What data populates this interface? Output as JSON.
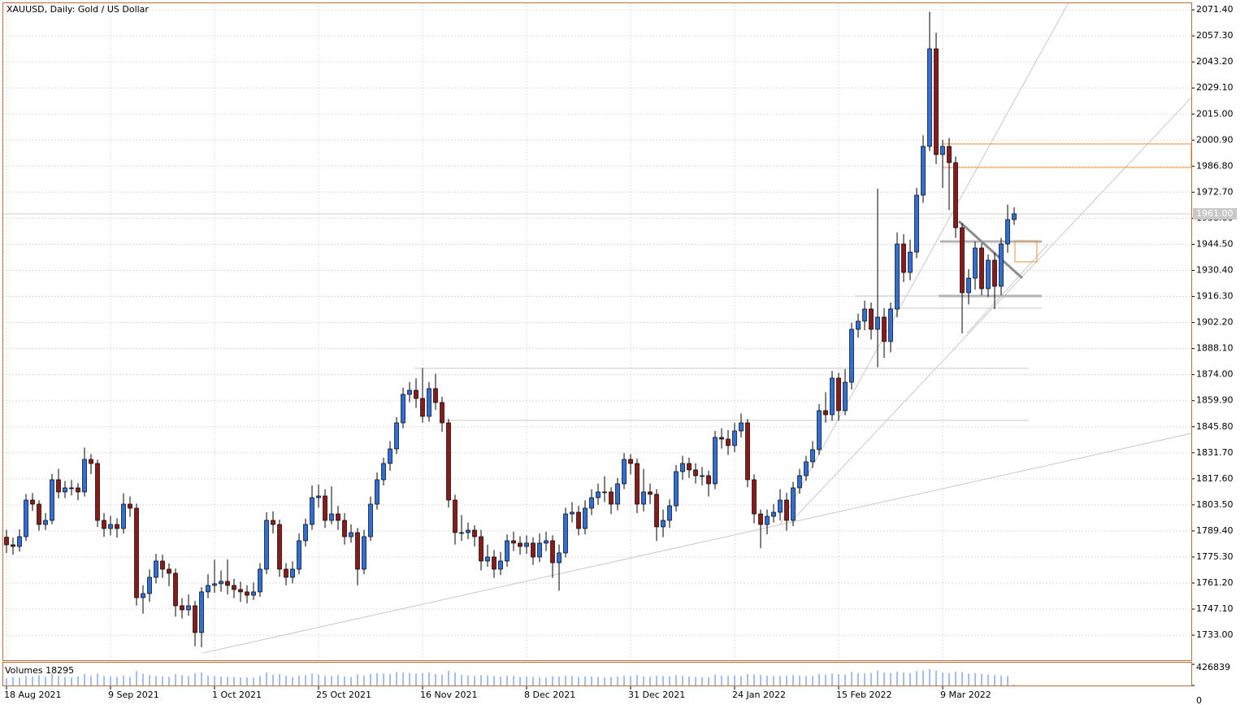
{
  "chart_data": {
    "type": "candlestick",
    "title": "XAUUSD, Daily:  Gold / US Dollar",
    "categories": [
      "18 Aug 2021",
      null,
      null,
      null,
      null,
      null,
      null,
      null,
      null,
      null,
      null,
      null,
      null,
      null,
      null,
      null,
      "9 Sep 2021",
      null,
      null,
      null,
      null,
      null,
      null,
      null,
      null,
      null,
      null,
      null,
      null,
      null,
      null,
      null,
      "1 Oct 2021",
      null,
      null,
      null,
      null,
      null,
      null,
      null,
      null,
      null,
      null,
      null,
      null,
      null,
      null,
      null,
      "25 Oct 2021",
      null,
      null,
      null,
      null,
      null,
      null,
      null,
      null,
      null,
      null,
      null,
      null,
      null,
      null,
      null,
      "16 Nov 2021",
      null,
      null,
      null,
      null,
      null,
      null,
      null,
      null,
      null,
      null,
      null,
      null,
      null,
      null,
      null,
      "8 Dec 2021",
      null,
      null,
      null,
      null,
      null,
      null,
      null,
      null,
      null,
      null,
      null,
      null,
      null,
      null,
      null,
      "31 Dec 2021",
      null,
      null,
      null,
      null,
      null,
      null,
      null,
      null,
      null,
      null,
      null,
      null,
      null,
      null,
      null,
      "24 Jan 2022",
      null,
      null,
      null,
      null,
      null,
      null,
      null,
      null,
      null,
      null,
      null,
      null,
      null,
      null,
      null,
      "15 Feb 2022",
      null,
      null,
      null,
      null,
      null,
      null,
      null,
      null,
      null,
      null,
      null,
      null,
      null,
      null,
      null,
      "9 Mar 2022",
      null,
      null,
      null,
      null,
      null,
      null,
      null,
      null,
      null,
      null,
      null
    ],
    "open": [
      1786.0,
      1781.9,
      1781.0,
      1786.3,
      1806.1,
      1803.9,
      1792.9,
      1795.1,
      1817.1,
      1810.5,
      1812.7,
      1812.7,
      1810.5,
      1828.1,
      1825.9,
      1795.1,
      1790.7,
      1792.9,
      1790.7,
      1803.9,
      1801.7,
      1753.3,
      1755.5,
      1764.3,
      1773.1,
      1768.7,
      1766.5,
      1748.9,
      1746.7,
      1748.9,
      1734.4,
      1756.4,
      1759.9,
      1760.8,
      1762.1,
      1759.9,
      1757.7,
      1756.4,
      1754.6,
      1756.4,
      1768.7,
      1795.1,
      1792.9,
      1768.7,
      1764.3,
      1768.7,
      1784.1,
      1792.9,
      1807.4,
      1808.3,
      1795.1,
      1798.6,
      1795.1,
      1786.3,
      1788.5,
      1768.7,
      1786.3,
      1803.9,
      1817.1,
      1825.9,
      1833.8,
      1847.9,
      1863.3,
      1865.5,
      1861.1,
      1851.4,
      1866.4,
      1858.9,
      1847.9,
      1806.1,
      1788.5,
      1788.5,
      1789.8,
      1786.3,
      1773.1,
      1775.3,
      1768.7,
      1773.1,
      1784.1,
      1782.8,
      1781.0,
      1782.8,
      1775.3,
      1782.8,
      1784.1,
      1772.2,
      1777.5,
      1798.6,
      1799.5,
      1790.7,
      1801.7,
      1807.4,
      1810.5,
      1810.5,
      1803.9,
      1814.9,
      1828.1,
      1825.9,
      1803.9,
      1810.5,
      1809.2,
      1791.6,
      1795.1,
      1803.0,
      1821.5,
      1825.9,
      1822.4,
      1819.3,
      1819.3,
      1814.9,
      1840.0,
      1839.1,
      1835.6,
      1843.5,
      1847.9,
      1817.1,
      1798.6,
      1792.9,
      1797.3,
      1799.5,
      1806.1,
      1795.1,
      1812.7,
      1819.3,
      1826.8,
      1833.4,
      1854.5,
      1852.3,
      1872.1,
      1854.5,
      1869.9,
      1898.5,
      1902.9,
      1909.5,
      1898.5,
      1905.1,
      1891.9,
      1909.5,
      1944.7,
      1929.3,
      1940.3,
      1971.1,
      1997.5,
      2050.3,
      1993.1,
      1997.5,
      1988.7,
      1953.5,
      1918.3,
      1926.2,
      1942.5,
      1920.5,
      1935.9,
      1921.8,
      1944.7,
      1957.9
    ],
    "high": [
      1790.0,
      1785.8,
      1790.2,
      1809.4,
      1809.9,
      1806.0,
      1799.0,
      1820.3,
      1823.0,
      1816.4,
      1817.0,
      1815.3,
      1834.5,
      1831.0,
      1828.0,
      1799.0,
      1797.6,
      1796.2,
      1809.8,
      1808.0,
      1804.2,
      1760.0,
      1768.5,
      1777.0,
      1776.5,
      1771.8,
      1769.0,
      1753.0,
      1755.0,
      1751.5,
      1759.0,
      1766.0,
      1773.8,
      1768.0,
      1774.0,
      1763.5,
      1762.0,
      1760.0,
      1761.5,
      1772.0,
      1799.5,
      1800.0,
      1795.5,
      1772.0,
      1773.0,
      1788.0,
      1796.0,
      1814.0,
      1814.5,
      1812.0,
      1813.5,
      1803.0,
      1799.0,
      1793.0,
      1791.0,
      1790.0,
      1808.0,
      1821.0,
      1829.0,
      1838.0,
      1851.0,
      1867.0,
      1870.0,
      1872.0,
      1877.5,
      1870.0,
      1874.5,
      1862.0,
      1850.0,
      1809.0,
      1798.0,
      1794.0,
      1792.5,
      1790.0,
      1782.0,
      1779.0,
      1778.0,
      1787.5,
      1789.0,
      1786.5,
      1787.0,
      1786.0,
      1788.0,
      1789.0,
      1787.0,
      1782.0,
      1802.0,
      1805.0,
      1803.0,
      1806.0,
      1812.0,
      1815.0,
      1819.0,
      1813.0,
      1818.0,
      1831.5,
      1831.0,
      1828.5,
      1823.0,
      1815.0,
      1812.0,
      1801.0,
      1806.5,
      1825.0,
      1830.0,
      1829.0,
      1826.0,
      1824.0,
      1822.0,
      1843.5,
      1845.0,
      1844.0,
      1848.0,
      1853.0,
      1850.0,
      1820.0,
      1801.0,
      1801.0,
      1804.0,
      1812.0,
      1810.0,
      1816.0,
      1823.0,
      1830.0,
      1838.0,
      1858.0,
      1864.5,
      1876.0,
      1875.0,
      1877.0,
      1902.0,
      1907.0,
      1914.0,
      1913.0,
      1974.6,
      1910.0,
      1913.0,
      1951.0,
      1950.0,
      1947.0,
      1975.0,
      2003.5,
      2070.4,
      2059.0,
      2001.0,
      2002.0,
      1992.0,
      1956.0,
      1931.0,
      1946.0,
      1945.0,
      1939.0,
      1940.0,
      1948.0,
      1966.0,
      1964.5
    ],
    "low": [
      1777.5,
      1776.6,
      1778.2,
      1784.0,
      1800.2,
      1789.5,
      1789.9,
      1793.0,
      1807.0,
      1807.2,
      1808.6,
      1806.0,
      1808.0,
      1820.1,
      1791.5,
      1786.2,
      1787.0,
      1785.8,
      1788.0,
      1797.0,
      1749.0,
      1744.6,
      1751.0,
      1761.0,
      1764.0,
      1759.5,
      1743.0,
      1742.0,
      1743.5,
      1727.0,
      1726.5,
      1753.0,
      1756.0,
      1756.5,
      1755.0,
      1753.0,
      1751.0,
      1750.2,
      1752.0,
      1753.8,
      1766.0,
      1788.0,
      1764.5,
      1760.0,
      1761.0,
      1766.0,
      1781.0,
      1790.0,
      1802.0,
      1791.0,
      1793.0,
      1790.0,
      1782.0,
      1783.0,
      1760.0,
      1766.0,
      1784.0,
      1801.0,
      1814.0,
      1822.0,
      1831.0,
      1845.0,
      1859.0,
      1856.0,
      1848.0,
      1848.5,
      1855.0,
      1843.0,
      1802.0,
      1782.0,
      1784.0,
      1785.0,
      1781.0,
      1768.0,
      1770.0,
      1764.0,
      1765.5,
      1770.0,
      1778.5,
      1776.5,
      1777.0,
      1771.0,
      1772.5,
      1778.5,
      1764.0,
      1757.0,
      1775.0,
      1794.0,
      1787.0,
      1787.5,
      1798.0,
      1803.5,
      1805.0,
      1798.5,
      1800.5,
      1812.0,
      1820.0,
      1799.0,
      1800.0,
      1804.0,
      1784.0,
      1786.0,
      1791.0,
      1800.0,
      1817.0,
      1818.0,
      1815.0,
      1814.0,
      1808.0,
      1812.0,
      1834.0,
      1830.5,
      1832.0,
      1840.0,
      1813.0,
      1793.5,
      1780.0,
      1787.5,
      1794.0,
      1795.0,
      1789.5,
      1792.0,
      1809.5,
      1816.5,
      1823.5,
      1830.5,
      1848.0,
      1849.0,
      1849.0,
      1852.0,
      1866.0,
      1894.0,
      1898.0,
      1893.0,
      1878.0,
      1883.0,
      1886.0,
      1905.0,
      1924.0,
      1925.0,
      1937.0,
      1967.0,
      1995.0,
      1988.0,
      1975.0,
      1963.0,
      1948.0,
      1896.3,
      1912.0,
      1920.0,
      1917.0,
      1916.0,
      1909.5,
      1917.0,
      1940.0,
      1955.0
    ],
    "close": [
      1781.9,
      1781.0,
      1786.3,
      1806.1,
      1803.9,
      1792.9,
      1795.1,
      1817.1,
      1810.5,
      1812.7,
      1812.7,
      1810.5,
      1828.1,
      1825.9,
      1795.1,
      1790.7,
      1792.9,
      1790.7,
      1803.9,
      1801.7,
      1753.3,
      1755.5,
      1764.3,
      1773.1,
      1768.7,
      1766.5,
      1748.9,
      1746.7,
      1748.9,
      1734.4,
      1756.4,
      1759.9,
      1760.8,
      1762.1,
      1759.9,
      1757.7,
      1756.4,
      1754.6,
      1756.4,
      1768.7,
      1795.1,
      1792.9,
      1768.7,
      1764.3,
      1768.7,
      1784.1,
      1792.9,
      1807.4,
      1808.3,
      1795.1,
      1798.6,
      1795.1,
      1786.3,
      1788.5,
      1768.7,
      1786.3,
      1803.9,
      1817.1,
      1825.9,
      1833.8,
      1847.9,
      1863.3,
      1865.5,
      1861.1,
      1851.4,
      1866.4,
      1858.9,
      1847.9,
      1806.1,
      1788.5,
      1788.5,
      1789.8,
      1786.3,
      1773.1,
      1775.3,
      1768.7,
      1773.1,
      1784.1,
      1782.8,
      1781.0,
      1782.8,
      1775.3,
      1782.8,
      1784.1,
      1772.2,
      1777.5,
      1798.6,
      1799.5,
      1790.7,
      1801.7,
      1807.4,
      1810.5,
      1810.5,
      1803.9,
      1814.9,
      1828.1,
      1825.9,
      1803.9,
      1810.5,
      1809.2,
      1791.6,
      1795.1,
      1803.0,
      1821.5,
      1825.9,
      1822.4,
      1819.3,
      1819.3,
      1814.9,
      1840.0,
      1839.1,
      1835.6,
      1843.5,
      1847.9,
      1817.1,
      1798.6,
      1792.9,
      1797.3,
      1799.5,
      1806.1,
      1795.1,
      1812.7,
      1819.3,
      1826.8,
      1833.4,
      1854.5,
      1852.3,
      1872.1,
      1854.5,
      1869.9,
      1898.5,
      1902.9,
      1909.5,
      1898.5,
      1905.1,
      1891.9,
      1909.5,
      1944.7,
      1929.3,
      1940.3,
      1971.1,
      1997.5,
      2050.3,
      1993.1,
      1997.5,
      1988.7,
      1953.5,
      1918.3,
      1926.2,
      1942.5,
      1920.5,
      1935.9,
      1921.8,
      1944.7,
      1957.9,
      1961.0
    ],
    "ylim": [
      1719.4,
      2075.4
    ],
    "yticks": [
      {
        "value": 2071.4,
        "label": "2071.40"
      },
      {
        "value": 2057.3,
        "label": "2057.30"
      },
      {
        "value": 2043.2,
        "label": "2043.20"
      },
      {
        "value": 2029.1,
        "label": "2029.10"
      },
      {
        "value": 2015.0,
        "label": "2015.00"
      },
      {
        "value": 2000.9,
        "label": "2000.90"
      },
      {
        "value": 1986.8,
        "label": "1986.80"
      },
      {
        "value": 1972.7,
        "label": "1972.70"
      },
      {
        "value": 1958.6,
        "label": "1958.60"
      },
      {
        "value": 1944.5,
        "label": "1944.50"
      },
      {
        "value": 1930.4,
        "label": "1930.40"
      },
      {
        "value": 1916.3,
        "label": "1916.30"
      },
      {
        "value": 1902.2,
        "label": "1902.20"
      },
      {
        "value": 1888.1,
        "label": "1888.10"
      },
      {
        "value": 1874.0,
        "label": "1874.00"
      },
      {
        "value": 1859.9,
        "label": "1859.90"
      },
      {
        "value": 1845.8,
        "label": "1845.80"
      },
      {
        "value": 1831.7,
        "label": "1831.70"
      },
      {
        "value": 1817.6,
        "label": "1817.60"
      },
      {
        "value": 1803.5,
        "label": "1803.50"
      },
      {
        "value": 1789.4,
        "label": "1789.40"
      },
      {
        "value": 1775.3,
        "label": "1775.30"
      },
      {
        "value": 1761.2,
        "label": "1761.20"
      },
      {
        "value": 1747.1,
        "label": "1747.10"
      },
      {
        "value": 1733.0,
        "label": "1733.00"
      }
    ],
    "grid": true,
    "up_color": "#2f6fd6",
    "down_color": "#8b1a1a",
    "last_price": {
      "value": 1961.0,
      "label": "1961.00"
    },
    "volume": {
      "label": "Volumes 18295",
      "color": "#4a7fd6",
      "ylim": [
        0,
        426839
      ],
      "yticks": [
        426839,
        0
      ],
      "values": [
        150000,
        170000,
        160000,
        190000,
        180000,
        210000,
        175000,
        230000,
        190000,
        170000,
        165000,
        180000,
        230000,
        200000,
        240000,
        190000,
        180000,
        170000,
        200000,
        175000,
        290000,
        240000,
        210000,
        190000,
        180000,
        170000,
        230000,
        210000,
        190000,
        250000,
        260000,
        200000,
        190000,
        180000,
        175000,
        170000,
        160000,
        165000,
        155000,
        200000,
        260000,
        220000,
        230000,
        190000,
        170000,
        200000,
        210000,
        240000,
        220000,
        200000,
        190000,
        210000,
        180000,
        170000,
        220000,
        200000,
        230000,
        250000,
        240000,
        230000,
        270000,
        260000,
        250000,
        240000,
        250000,
        260000,
        230000,
        220000,
        300000,
        260000,
        220000,
        200000,
        190000,
        210000,
        200000,
        190000,
        180000,
        200000,
        190000,
        170000,
        180000,
        175000,
        165000,
        160000,
        190000,
        180000,
        200000,
        190000,
        170000,
        185000,
        180000,
        175000,
        160000,
        170000,
        180000,
        200000,
        190000,
        210000,
        185000,
        175000,
        200000,
        190000,
        185000,
        210000,
        195000,
        180000,
        175000,
        170000,
        165000,
        220000,
        200000,
        195000,
        205000,
        190000,
        230000,
        220000,
        210000,
        200000,
        190000,
        195000,
        200000,
        210000,
        200000,
        190000,
        195000,
        230000,
        220000,
        240000,
        230000,
        220000,
        270000,
        250000,
        240000,
        250000,
        300000,
        260000,
        250000,
        280000,
        260000,
        250000,
        290000,
        300000,
        330000,
        300000,
        260000,
        250000,
        280000,
        270000,
        240000,
        250000,
        230000,
        220000,
        210000,
        200000,
        190000,
        18295
      ]
    }
  }
}
